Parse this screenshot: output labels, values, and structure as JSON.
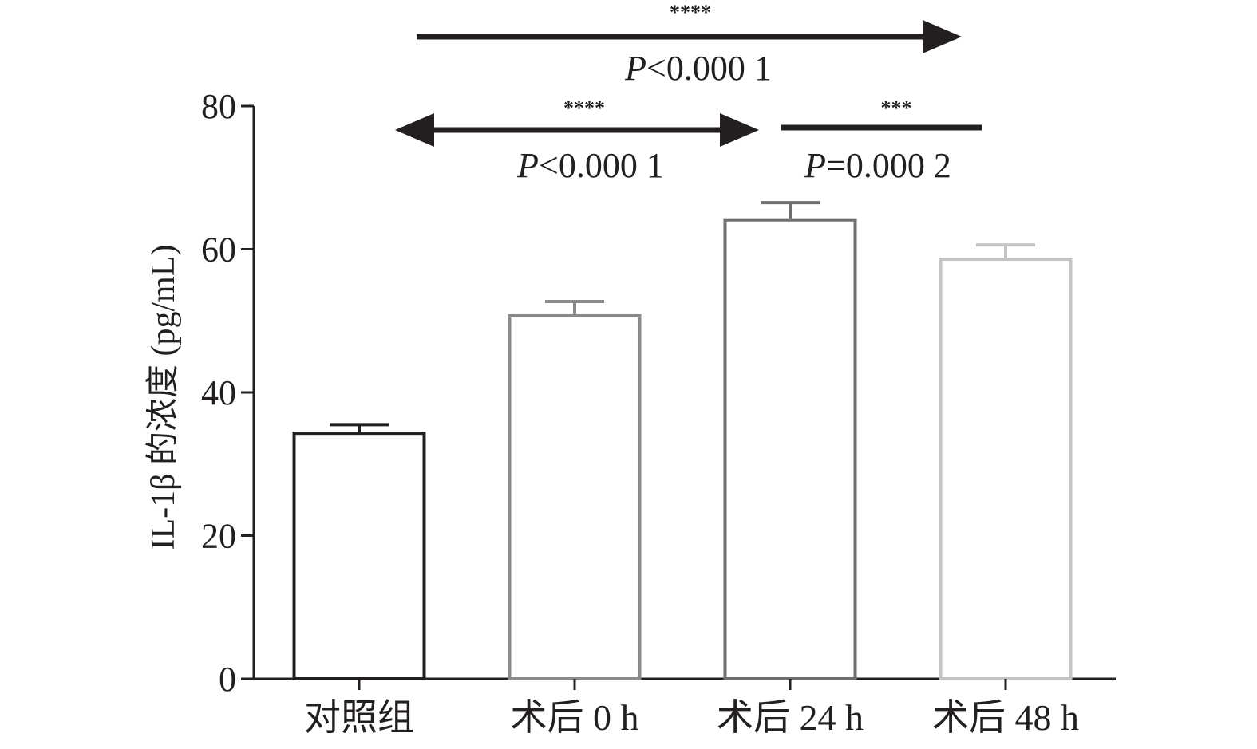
{
  "chart_data": {
    "type": "bar",
    "title": "",
    "xlabel": "",
    "ylabel": "IL-1β 的浓度 (pg/mL)",
    "ylim": [
      0,
      80
    ],
    "yticks": [
      "0",
      "20",
      "40",
      "60",
      "80"
    ],
    "categories": [
      "对照组",
      "术后 0 h",
      "术后 24 h",
      "术后 48 h"
    ],
    "values": [
      34.3,
      50.7,
      64.1,
      58.6
    ],
    "errors": [
      1.2,
      2.0,
      2.4,
      2.0
    ],
    "bar_colors": [
      "#231f20",
      "#8a8a8a",
      "#6e6e6e",
      "#c4c4c4"
    ],
    "annotations": [
      {
        "id": "top",
        "stars": "****",
        "p_prefix": "P",
        "p_text": "<0.000 1"
      },
      {
        "id": "left",
        "stars": "****",
        "p_prefix": "P",
        "p_text": "<0.000 1"
      },
      {
        "id": "right",
        "stars": "***",
        "p_prefix": "P",
        "p_text": "=0.000 2"
      }
    ]
  }
}
